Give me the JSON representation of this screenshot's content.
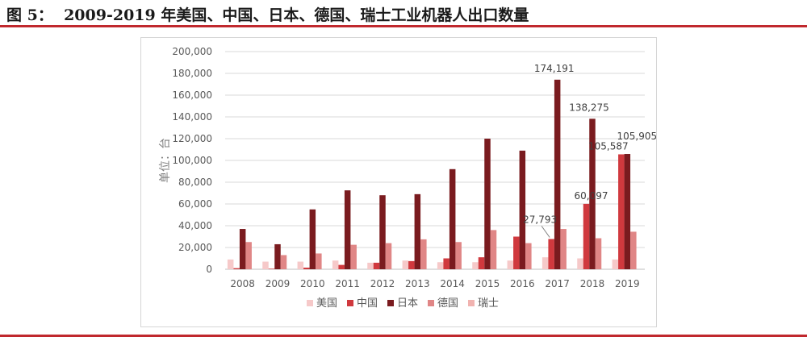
{
  "caption": {
    "label": "图 5：",
    "text": "2009-2019 年美国、中国、日本、德国、瑞士工业机器人出口数量"
  },
  "colors": {
    "rule": "#c0282d",
    "grid": "#d9d9d9",
    "axis": "#bfbfbf"
  },
  "chart_data": {
    "type": "bar",
    "title": "",
    "xlabel": "",
    "ylabel": "单位：台",
    "ylim": [
      0,
      200000
    ],
    "yticks": [
      "0",
      "20,000",
      "40,000",
      "60,000",
      "80,000",
      "100,000",
      "120,000",
      "140,000",
      "160,000",
      "180,000",
      "200,000"
    ],
    "ytick_values": [
      0,
      20000,
      40000,
      60000,
      80000,
      100000,
      120000,
      140000,
      160000,
      180000,
      200000
    ],
    "grid": true,
    "legend_position": "bottom",
    "categories": [
      "2008",
      "2009",
      "2010",
      "2011",
      "2012",
      "2013",
      "2014",
      "2015",
      "2016",
      "2017",
      "2018",
      "2019"
    ],
    "series": [
      {
        "name": "美国",
        "color": "#f6c9c9",
        "values": [
          9000,
          7000,
          7000,
          8000,
          6000,
          8000,
          6500,
          6500,
          8000,
          11000,
          10000,
          9000
        ]
      },
      {
        "name": "中国",
        "color": "#d0393e",
        "values": [
          1000,
          500,
          1500,
          4000,
          6000,
          7500,
          10000,
          11000,
          30000,
          27793,
          60097,
          105587
        ]
      },
      {
        "name": "日本",
        "color": "#7a1b1f",
        "values": [
          37000,
          23000,
          55000,
          72500,
          68000,
          69000,
          92000,
          120000,
          109000,
          174191,
          138275,
          105905
        ]
      },
      {
        "name": "德国",
        "color": "#e08686",
        "values": [
          25000,
          13000,
          14500,
          22500,
          24000,
          27500,
          25000,
          36000,
          24000,
          37000,
          28500,
          34500
        ]
      },
      {
        "name": "瑞士",
        "color": "#f1b3b0",
        "values": [
          0,
          0,
          0,
          0,
          0,
          0,
          0,
          0,
          0,
          0,
          0,
          0
        ]
      }
    ],
    "annotations": [
      {
        "text": "174,191",
        "category": "2017",
        "series": "日本",
        "value": 174191
      },
      {
        "text": "138,275",
        "category": "2018",
        "series": "日本",
        "value": 138275
      },
      {
        "text": "105,905",
        "category": "2019",
        "series": "日本",
        "value": 105905
      },
      {
        "text": "105,587",
        "category": "2019",
        "series": "中国",
        "value": 105587
      },
      {
        "text": "60,097",
        "category": "2018",
        "series": "中国",
        "value": 60097
      },
      {
        "text": "27,793",
        "category": "2017",
        "series": "中国",
        "value": 27793
      }
    ]
  }
}
